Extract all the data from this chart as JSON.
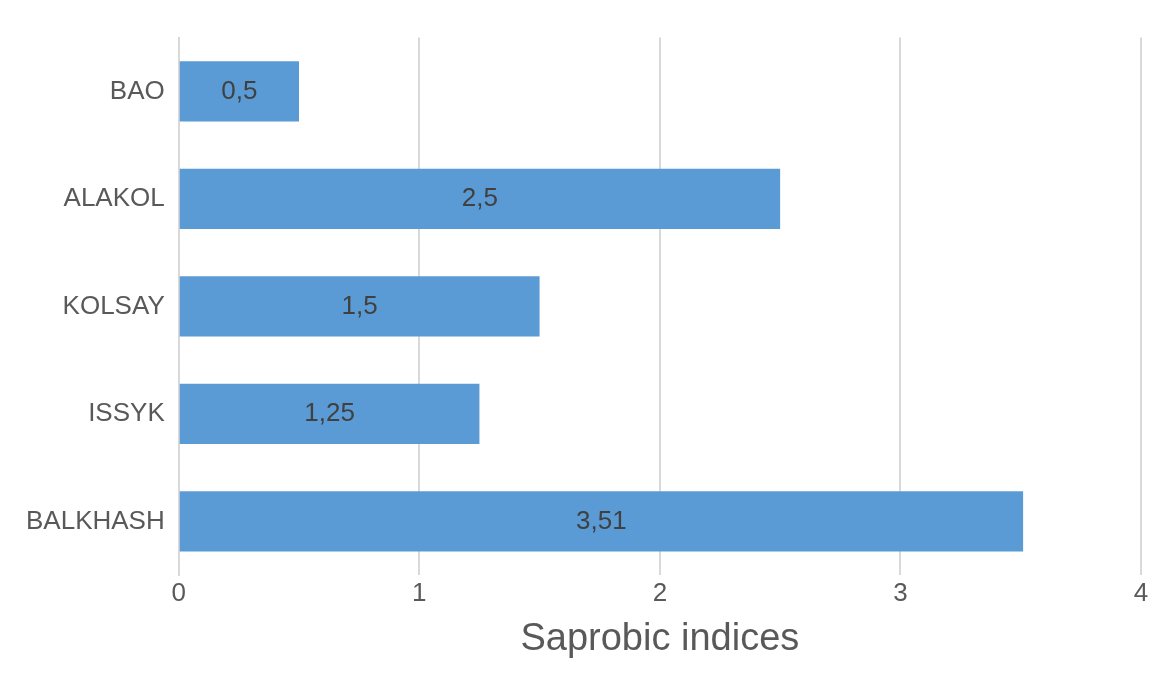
{
  "chart_data": {
    "type": "bar",
    "orientation": "horizontal",
    "xlabel": "Saprobic indices",
    "categories": [
      "BAO",
      "ALAKOL",
      "KOLSAY",
      "ISSYK",
      "BALKHASH"
    ],
    "values": [
      0.5,
      2.5,
      1.5,
      1.25,
      3.51
    ],
    "value_labels": [
      "0,5",
      "2,5",
      "1,5",
      "1,25",
      "3,51"
    ],
    "color": "#5b9bd5",
    "xlim": [
      0,
      4
    ],
    "xticks": [
      0,
      1,
      2,
      3,
      4
    ],
    "grid": "x",
    "legend": false
  }
}
